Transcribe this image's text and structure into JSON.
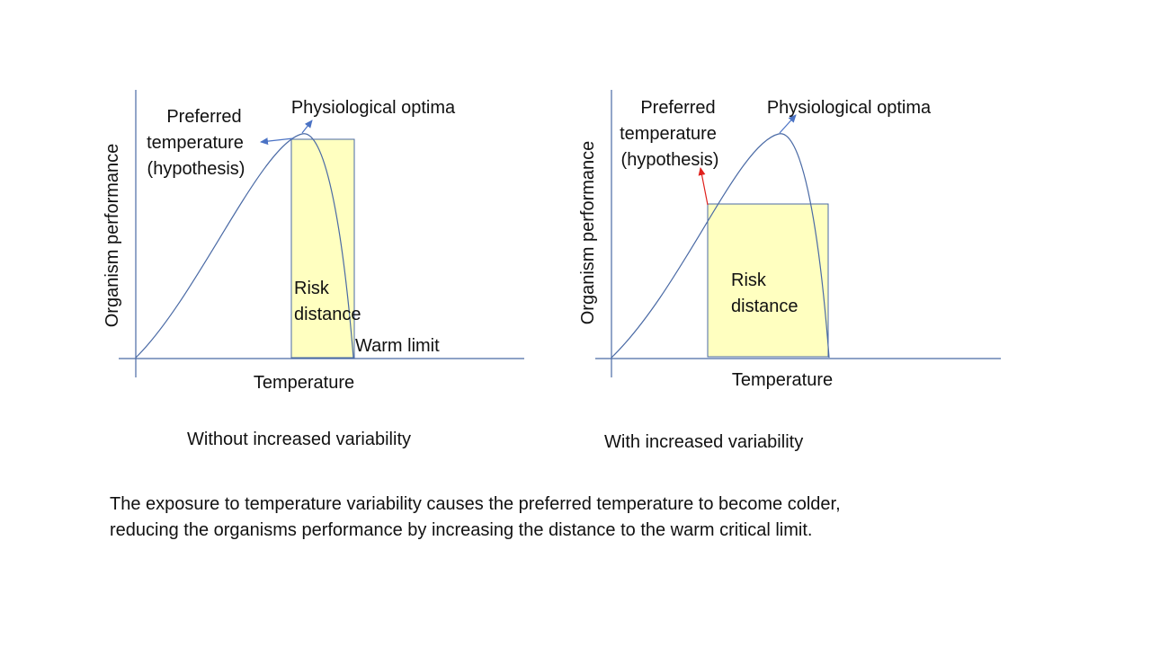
{
  "left_panel": {
    "ylabel": "Organism performance",
    "xlabel": "Temperature",
    "preferred_label": [
      "Preferred",
      "temperature",
      "(hypothesis)"
    ],
    "optima_label": "Physiological optima",
    "risk_label": [
      "Risk",
      "distance"
    ],
    "warm_limit_label": "Warm limit",
    "caption": "Without increased variability"
  },
  "right_panel": {
    "ylabel": "Organism performance",
    "xlabel": "Temperature",
    "preferred_label": [
      "Preferred",
      "temperature",
      "(hypothesis)"
    ],
    "optima_label": "Physiological optima",
    "risk_label": [
      "Risk",
      "distance"
    ],
    "caption": "With increased variability"
  },
  "footer": {
    "line1": "The exposure to temperature variability causes the preferred temperature to become colder,",
    "line2": "reducing the organisms performance by increasing the distance to the warm critical limit."
  },
  "colors": {
    "curve": "#4a6aa5",
    "axis": "#4a6aa5",
    "box_fill": "#ffffc0",
    "box_stroke": "#4a6aa5",
    "arrow_blue": "#4a72c4",
    "arrow_red": "#e0201c"
  }
}
